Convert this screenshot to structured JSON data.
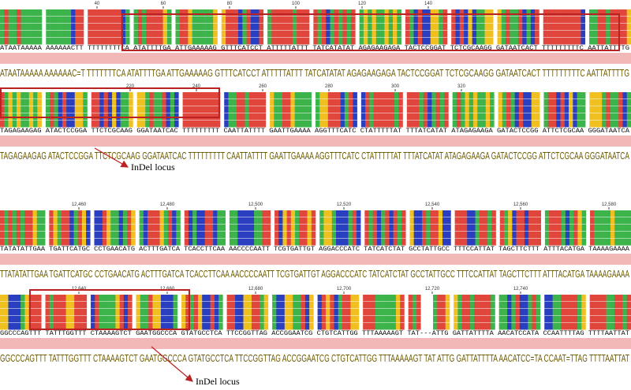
{
  "blocks": [
    {
      "ruler": [
        "40",
        "60",
        "80",
        "100",
        "120",
        "140"
      ],
      "sequence": "ATAATAAAAA AAAAAACTT TTTTTTTTCA ATATTTTGA ATTGAAAAAG GTTTCATCCT ATTTTTATTT TATCATATAT AGAGAAGAGA TACTCCGGAT TCTCGCAAGG GATAATCACT TTTTTTTTTC AATTATTTTG",
      "consensus": "ATAATAAAAA AAAAAAC=T TTTTTTTCA ATATTTTGA ATTGAAAAAG GTTTCATCCT ATTTTTATTT TATCATATAT AGAGAAGAGA TACTCCGGAT TCTCGCAAGG GATAATCACT TTTTTTTTTC AATTATTTTG"
    },
    {
      "ruler": [
        "220",
        "240",
        "260",
        "280",
        "300",
        "320"
      ],
      "sequence": "TAGAGAAGAG ATACTCCGGA TTCTCGCAAG GGATAATCAC TTTTTTTTT CAATTATTTT GAATTGAAAA AGGTTTCATC CTATTTTTAT TTTATCATAT ATAGAGAAGA GATACTCCGG ATTCTCGCAA GGGATAATCA",
      "consensus": "TAGAGAAGAG ATACTCCGGA TTCTCGCAAG GGATAATCAC TTTTTTTTT CAATTATTTT GAATTGAAAA AGGTTTCATC CTATTTTTAT TTTATCATAT ATAGAGAAGA GATACTCCGG ATTCTCGCAA GGGATAATCA"
    },
    {
      "ruler": [
        "12,460",
        "12,480",
        "12,500",
        "12,520",
        "12,540",
        "12,560",
        "12,580"
      ],
      "sequence": "TATATATTGAA TGATTCATGC CCTGAACATG ACTTTGATCA TCACCTTCAA AACCCCAATT TCGTGATTGT AGGACCCATC TATCATCTAT GCCTATTGCC TTTCCATTAT TAGCTTCTTT ATTTACATGA TAAAAGAAAA",
      "consensus": "TTATATATTGAA TGATTCATGC CCTGAACATG ACTTTGATCA TCACCTTCAA AACCCCAATT TCGTGATTGT AGGACCCATC TATCATCTAT GCCTATTGCC TTTCCATTAT TAGCTTCTTT ATTTACATGA TAAAAGAAAA"
    },
    {
      "ruler": [
        "12,640",
        "12,660",
        "12,680",
        "12,700",
        "12,720",
        "12,740"
      ],
      "sequence": "GGCCCAGTTT TATTTGGTTT CTAAAAGTCT GAATGGCCCA GTATGCCTCA TTCCGGTTAG ACCGGAATCG CTGTCATTGG TTTAAAAAGT TAT---ATTG GATTATTTTA AACATCCATA CCAATTTTAG TTTTAATTAT",
      "consensus": "GGCCCAGTTT TATTTGGTTT CTAAAAGTCT GAATGGCCCA GTATGCCTCA TTCCGGTTAG ACCGGAATCG CTGTCATTGG TTTAAAAAGT TAT ATTG GATTATTTTA AACATCC=TA CCAAT=TTAG TTTTAATTAT"
    }
  ],
  "annotations": [
    {
      "label": "InDel locus"
    },
    {
      "label": "InDel locus"
    }
  ]
}
